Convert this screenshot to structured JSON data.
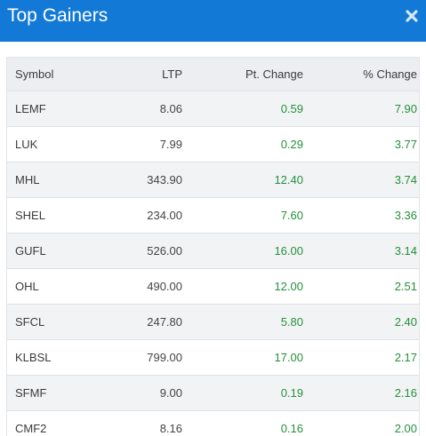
{
  "header": {
    "title": "Top Gainers",
    "close_icon": "close-icon"
  },
  "colors": {
    "header_bg": "#1379d6",
    "positive": "#24913a"
  },
  "table": {
    "columns": [
      "Symbol",
      "LTP",
      "Pt. Change",
      "% Change"
    ],
    "rows": [
      [
        "LEMF",
        "8.06",
        "0.59",
        "7.90"
      ],
      [
        "LUK",
        "7.99",
        "0.29",
        "3.77"
      ],
      [
        "MHL",
        "343.90",
        "12.40",
        "3.74"
      ],
      [
        "SHEL",
        "234.00",
        "7.60",
        "3.36"
      ],
      [
        "GUFL",
        "526.00",
        "16.00",
        "3.14"
      ],
      [
        "OHL",
        "490.00",
        "12.00",
        "2.51"
      ],
      [
        "SFCL",
        "247.80",
        "5.80",
        "2.40"
      ],
      [
        "KLBSL",
        "799.00",
        "17.00",
        "2.17"
      ],
      [
        "SFMF",
        "9.00",
        "0.19",
        "2.16"
      ],
      [
        "CMF2",
        "8.16",
        "0.16",
        "2.00"
      ]
    ]
  }
}
